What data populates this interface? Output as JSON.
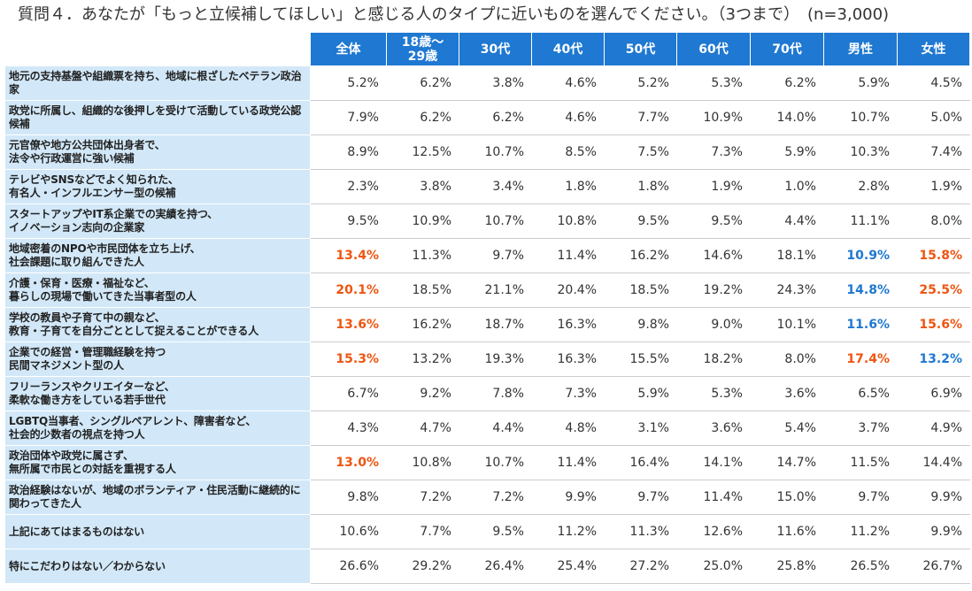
{
  "title": "質問４．あなたが「もっと立候補してほしい」と感じる人のタイプに近いものを選んでください。（3つまで）　(n=3,000)",
  "colors": {
    "header_bg": "#1f78d1",
    "label_bg": "#d2e8f8",
    "highlight_orange": "#ee5511",
    "highlight_blue": "#1f78d1"
  },
  "chart_data": {
    "type": "table",
    "columns": [
      "全体",
      "18歳〜\n29歳",
      "30代",
      "40代",
      "50代",
      "60代",
      "70代",
      "男性",
      "女性"
    ],
    "rows": [
      {
        "label": "地元の支持基盤や組織票を持ち、地域に根ざしたベテラン政治家",
        "values": [
          "5.2%",
          "6.2%",
          "3.8%",
          "4.6%",
          "5.2%",
          "5.3%",
          "6.2%",
          "5.9%",
          "4.5%"
        ],
        "highlights": [
          "",
          "",
          "",
          "",
          "",
          "",
          "",
          "",
          ""
        ]
      },
      {
        "label": "政党に所属し、組織的な後押しを受けて活動している政党公認候補",
        "values": [
          "7.9%",
          "6.2%",
          "6.2%",
          "4.6%",
          "7.7%",
          "10.9%",
          "14.0%",
          "10.7%",
          "5.0%"
        ],
        "highlights": [
          "",
          "",
          "",
          "",
          "",
          "",
          "",
          "",
          ""
        ]
      },
      {
        "label": "元官僚や地方公共団体出身者で、\n法令や行政運営に強い候補",
        "values": [
          "8.9%",
          "12.5%",
          "10.7%",
          "8.5%",
          "7.5%",
          "7.3%",
          "5.9%",
          "10.3%",
          "7.4%"
        ],
        "highlights": [
          "",
          "",
          "",
          "",
          "",
          "",
          "",
          "",
          ""
        ]
      },
      {
        "label": "テレビやSNSなどでよく知られた、\n有名人・インフルエンサー型の候補",
        "values": [
          "2.3%",
          "3.8%",
          "3.4%",
          "1.8%",
          "1.8%",
          "1.9%",
          "1.0%",
          "2.8%",
          "1.9%"
        ],
        "highlights": [
          "",
          "",
          "",
          "",
          "",
          "",
          "",
          "",
          ""
        ]
      },
      {
        "label": "スタートアップやIT系企業での実績を持つ、\nイノベーション志向の企業家",
        "values": [
          "9.5%",
          "10.9%",
          "10.7%",
          "10.8%",
          "9.5%",
          "9.5%",
          "4.4%",
          "11.1%",
          "8.0%"
        ],
        "highlights": [
          "",
          "",
          "",
          "",
          "",
          "",
          "",
          "",
          ""
        ]
      },
      {
        "label": "地域密着のNPOや市民団体を立ち上げ、\n社会課題に取り組んできた人",
        "values": [
          "13.4%",
          "11.3%",
          "9.7%",
          "11.4%",
          "16.2%",
          "14.6%",
          "18.1%",
          "10.9%",
          "15.8%"
        ],
        "highlights": [
          "orange",
          "",
          "",
          "",
          "",
          "",
          "",
          "blue",
          "orange"
        ]
      },
      {
        "label": "介護・保育・医療・福祉など、\n暮らしの現場で働いてきた当事者型の人",
        "values": [
          "20.1%",
          "18.5%",
          "21.1%",
          "20.4%",
          "18.5%",
          "19.2%",
          "24.3%",
          "14.8%",
          "25.5%"
        ],
        "highlights": [
          "orange",
          "",
          "",
          "",
          "",
          "",
          "",
          "blue",
          "orange"
        ]
      },
      {
        "label": "学校の教員や子育て中の親など、\n教育・子育てを自分ごととして捉えることができる人",
        "values": [
          "13.6%",
          "16.2%",
          "18.7%",
          "16.3%",
          "9.8%",
          "9.0%",
          "10.1%",
          "11.6%",
          "15.6%"
        ],
        "highlights": [
          "orange",
          "",
          "",
          "",
          "",
          "",
          "",
          "blue",
          "orange"
        ]
      },
      {
        "label": "企業での経営・管理職経験を持つ\n民間マネジメント型の人",
        "values": [
          "15.3%",
          "13.2%",
          "19.3%",
          "16.3%",
          "15.5%",
          "18.2%",
          "8.0%",
          "17.4%",
          "13.2%"
        ],
        "highlights": [
          "orange",
          "",
          "",
          "",
          "",
          "",
          "",
          "orange",
          "blue"
        ]
      },
      {
        "label": "フリーランスやクリエイターなど、\n柔軟な働き方をしている若手世代",
        "values": [
          "6.7%",
          "9.2%",
          "7.8%",
          "7.3%",
          "5.9%",
          "5.3%",
          "3.6%",
          "6.5%",
          "6.9%"
        ],
        "highlights": [
          "",
          "",
          "",
          "",
          "",
          "",
          "",
          "",
          ""
        ]
      },
      {
        "label": "LGBTQ当事者、シングルペアレント、障害者など、\n社会的少数者の視点を持つ人",
        "values": [
          "4.3%",
          "4.7%",
          "4.4%",
          "4.8%",
          "3.1%",
          "3.6%",
          "5.4%",
          "3.7%",
          "4.9%"
        ],
        "highlights": [
          "",
          "",
          "",
          "",
          "",
          "",
          "",
          "",
          ""
        ]
      },
      {
        "label": "政治団体や政党に属さず、\n無所属で市民との対話を重視する人",
        "values": [
          "13.0%",
          "10.8%",
          "10.7%",
          "11.4%",
          "16.4%",
          "14.1%",
          "14.7%",
          "11.5%",
          "14.4%"
        ],
        "highlights": [
          "orange",
          "",
          "",
          "",
          "",
          "",
          "",
          "",
          ""
        ]
      },
      {
        "label": "政治経験はないが、地域のボランティア・住民活動に継続的に関わってきた人",
        "values": [
          "9.8%",
          "7.2%",
          "7.2%",
          "9.9%",
          "9.7%",
          "11.4%",
          "15.0%",
          "9.7%",
          "9.9%"
        ],
        "highlights": [
          "",
          "",
          "",
          "",
          "",
          "",
          "",
          "",
          ""
        ]
      },
      {
        "label": "上記にあてはまるものはない",
        "values": [
          "10.6%",
          "7.7%",
          "9.5%",
          "11.2%",
          "11.3%",
          "12.6%",
          "11.6%",
          "11.2%",
          "9.9%"
        ],
        "highlights": [
          "",
          "",
          "",
          "",
          "",
          "",
          "",
          "",
          ""
        ]
      },
      {
        "label": "特にこだわりはない／わからない",
        "values": [
          "26.6%",
          "29.2%",
          "26.4%",
          "25.4%",
          "27.2%",
          "25.0%",
          "25.8%",
          "26.5%",
          "26.7%"
        ],
        "highlights": [
          "",
          "",
          "",
          "",
          "",
          "",
          "",
          "",
          ""
        ]
      }
    ]
  }
}
